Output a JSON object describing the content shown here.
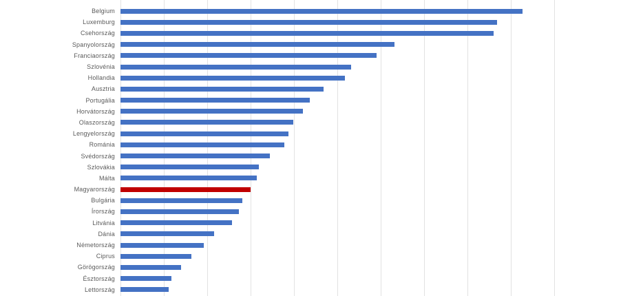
{
  "chart_data": {
    "type": "bar",
    "orientation": "horizontal",
    "title": "",
    "xlabel": "",
    "ylabel": "",
    "categories": [
      "Belgium",
      "Luxemburg",
      "Csehország",
      "Spanyolország",
      "Franciaország",
      "Szlovénia",
      "Hollandia",
      "Ausztria",
      "Portugália",
      "Horvátország",
      "Olaszország",
      "Lengyelország",
      "Románia",
      "Svédország",
      "Szlovákia",
      "Málta",
      "Magyarország",
      "Bulgária",
      "Írország",
      "Litvánia",
      "Dánia",
      "Németország",
      "Ciprus",
      "Görögország",
      "Észtország",
      "Lettország"
    ],
    "values": [
      92.7,
      86.8,
      86.1,
      63.1,
      59.1,
      53.1,
      51.8,
      46.8,
      43.6,
      42.0,
      39.9,
      38.7,
      37.7,
      34.4,
      31.9,
      31.4,
      30.0,
      28.1,
      27.3,
      25.7,
      21.6,
      19.2,
      16.3,
      13.9,
      11.7,
      11.1
    ],
    "values_unit": "relative (axis tick labels cropped out of view; 100 = rightmost gridline)",
    "xlim": [
      0,
      100
    ],
    "gridline_step": 10,
    "grid": true,
    "legend": false,
    "axis_tick_labels_visible": false,
    "bar_color": "#4472C4",
    "highlight": {
      "category": "Magyarország",
      "color": "#C00000"
    },
    "label_color": "#595959",
    "gridline_color": "#e2e2e2",
    "background_color": "#ffffff"
  }
}
